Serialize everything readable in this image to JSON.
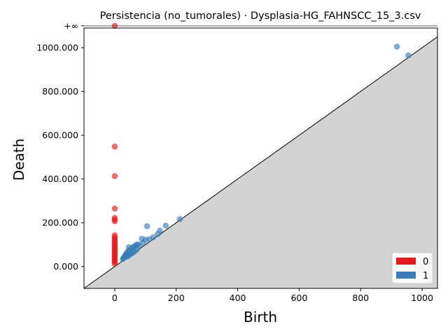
{
  "chart_data": {
    "type": "scatter",
    "title": "Persistencia (no_tumorales) · Dysplasia-HG_FAHNSCC_15_3.csv",
    "xlabel": "Birth",
    "ylabel": "Death",
    "xlim": [
      -100,
      1050
    ],
    "ylim": [
      -100,
      1090
    ],
    "infinity_label": "+∞",
    "infinity_value": 1100,
    "x_ticks": [
      0,
      200,
      400,
      600,
      800,
      1000
    ],
    "x_tick_labels": [
      "0",
      "200",
      "400",
      "600",
      "800",
      "1000"
    ],
    "y_ticks": [
      0,
      200,
      400,
      600,
      800,
      1000
    ],
    "y_tick_labels": [
      "0.000",
      "200.000",
      "400.000",
      "600.000",
      "800.000",
      "1000.000"
    ],
    "legend_position": "bottom-right",
    "series": [
      {
        "name": "0",
        "color": "#e41a1c",
        "points": [
          [
            0,
            1100
          ],
          [
            0,
            548
          ],
          [
            0,
            413
          ],
          [
            0,
            265
          ],
          [
            0,
            222
          ],
          [
            0,
            214
          ],
          [
            0,
            207
          ],
          [
            0,
            143
          ],
          [
            0,
            133
          ],
          [
            0,
            125
          ],
          [
            0,
            118
          ],
          [
            0,
            110
          ],
          [
            0,
            103
          ],
          [
            0,
            96
          ],
          [
            0,
            90
          ],
          [
            0,
            83
          ],
          [
            0,
            76
          ],
          [
            0,
            69
          ],
          [
            0,
            62
          ],
          [
            0,
            56
          ],
          [
            0,
            49
          ],
          [
            0,
            43
          ],
          [
            0,
            37
          ],
          [
            0,
            31
          ],
          [
            0,
            25
          ],
          [
            0,
            19
          ],
          [
            0,
            13
          ]
        ]
      },
      {
        "name": "1",
        "color": "#377eb8",
        "points": [
          [
            918,
            1005
          ],
          [
            955,
            965
          ],
          [
            212,
            217
          ],
          [
            166,
            187
          ],
          [
            105,
            184
          ],
          [
            147,
            164
          ],
          [
            140,
            148
          ],
          [
            125,
            134
          ],
          [
            112,
            125
          ],
          [
            100,
            122
          ],
          [
            88,
            127
          ],
          [
            92,
            108
          ],
          [
            80,
            96
          ],
          [
            75,
            102
          ],
          [
            70,
            98
          ],
          [
            66,
            94
          ],
          [
            62,
            90
          ],
          [
            58,
            86
          ],
          [
            55,
            82
          ],
          [
            52,
            78
          ],
          [
            48,
            74
          ],
          [
            46,
            88
          ],
          [
            44,
            70
          ],
          [
            42,
            66
          ],
          [
            40,
            62
          ],
          [
            38,
            58
          ],
          [
            36,
            54
          ],
          [
            34,
            50
          ],
          [
            32,
            46
          ],
          [
            30,
            42
          ],
          [
            28,
            38
          ],
          [
            26,
            34
          ],
          [
            60,
            64
          ],
          [
            65,
            70
          ],
          [
            72,
            78
          ],
          [
            54,
            60
          ],
          [
            50,
            56
          ],
          [
            44,
            48
          ],
          [
            38,
            44
          ]
        ]
      }
    ]
  }
}
